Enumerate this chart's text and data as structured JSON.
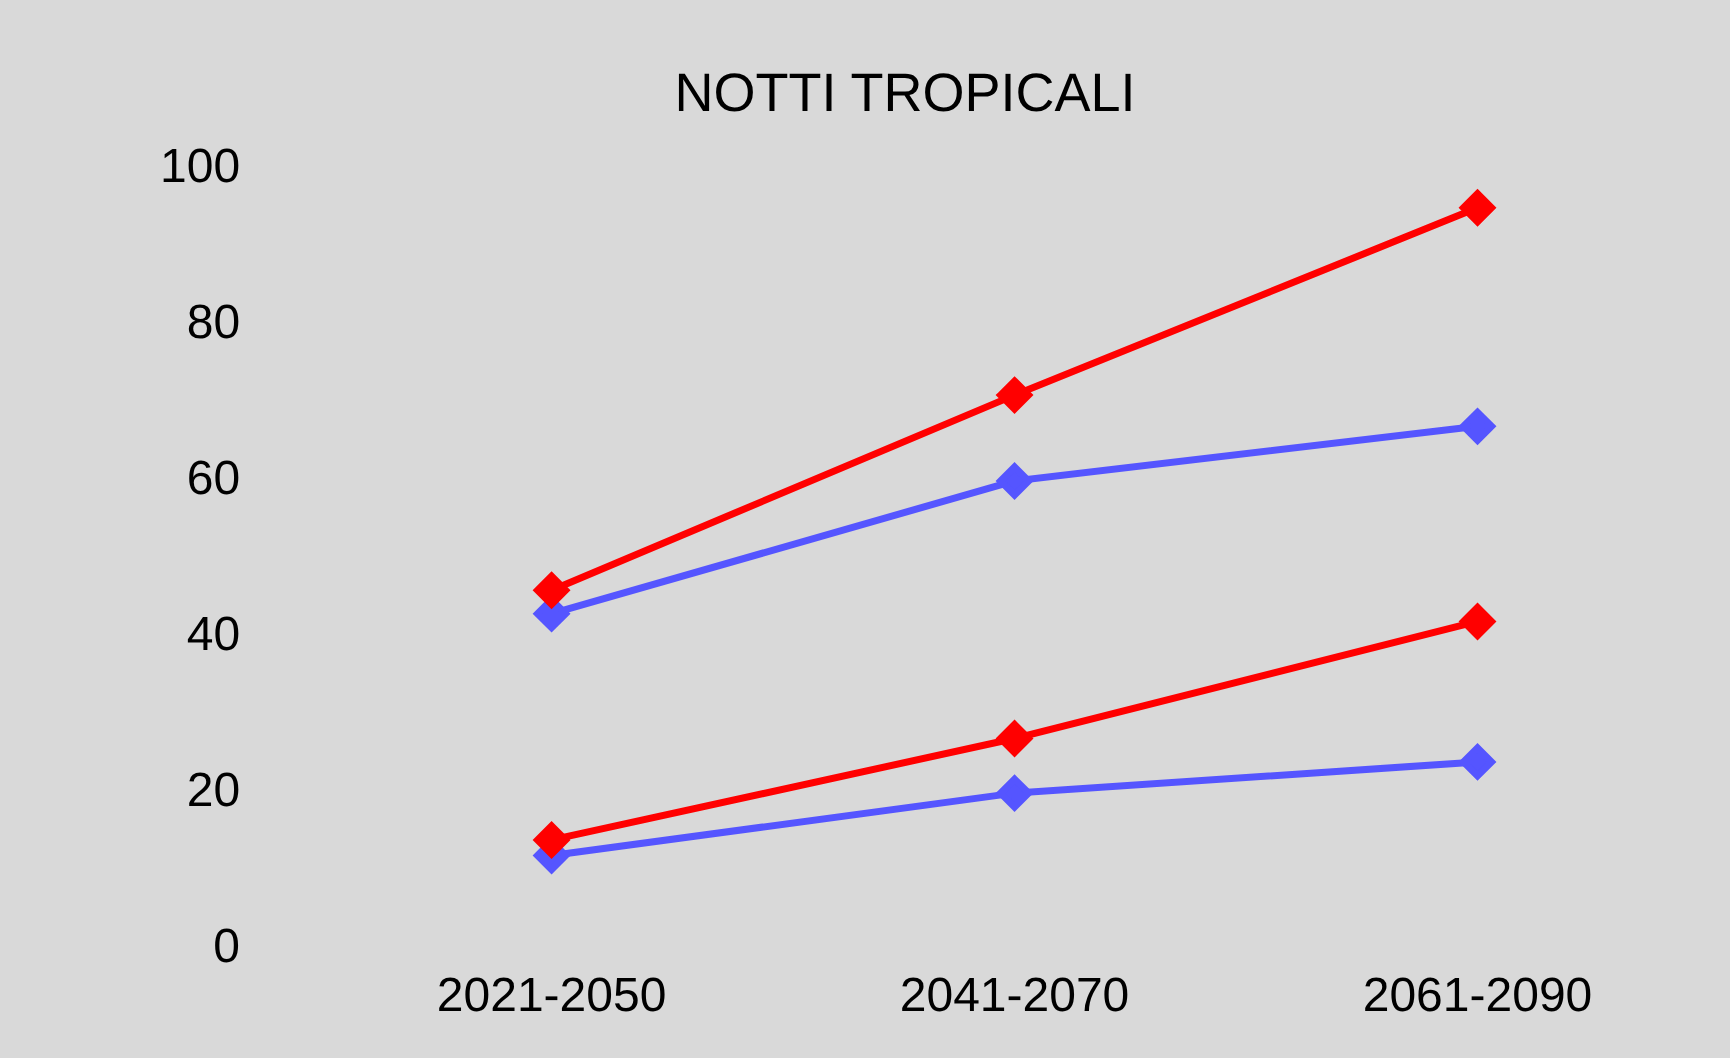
{
  "chart_data": {
    "type": "line",
    "title": "NOTTI TROPICALI",
    "categories": [
      "2021-2050",
      "2041-2070",
      "2061-2090"
    ],
    "series": [
      {
        "color": "#ff0000",
        "values": [
          46,
          71,
          95
        ]
      },
      {
        "color": "#5555ff",
        "values": [
          43,
          60,
          67
        ]
      },
      {
        "color": "#ff0000",
        "values": [
          14,
          27,
          42
        ]
      },
      {
        "color": "#5555ff",
        "values": [
          12,
          20,
          24
        ]
      }
    ],
    "ylim": [
      0,
      100
    ],
    "yticks": [
      0,
      20,
      40,
      60,
      80,
      100
    ],
    "grid": false,
    "legend": false,
    "marker": "diamond",
    "line_style": "solid"
  }
}
